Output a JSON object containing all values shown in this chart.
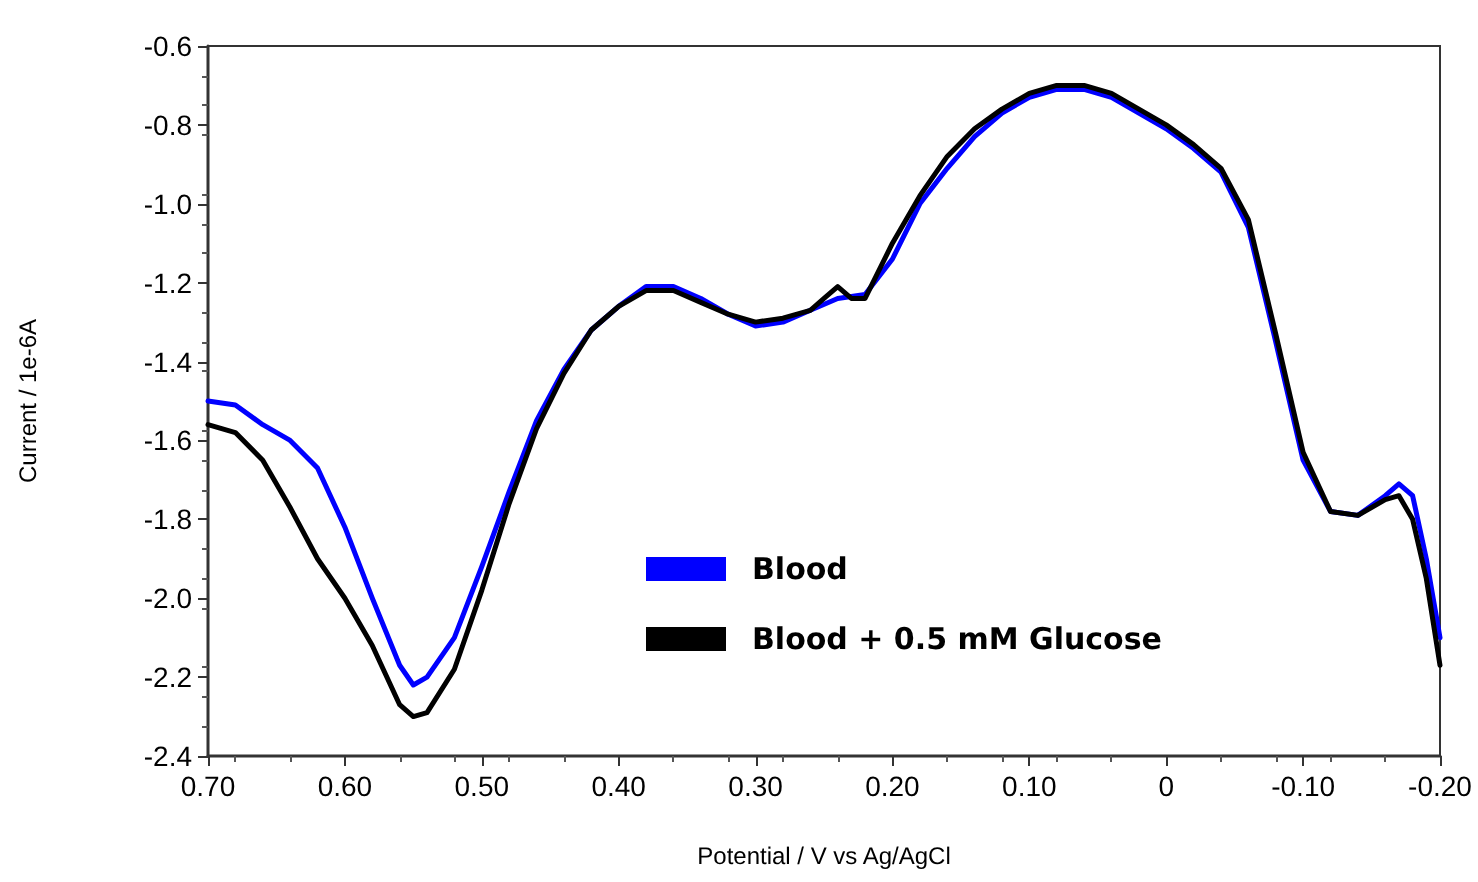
{
  "chart_data": {
    "type": "line",
    "xlabel": "Potential / V vs Ag/AgCl",
    "ylabel": "Current / 1e-6A",
    "xlim": [
      0.7,
      -0.2
    ],
    "xticks": [
      {
        "value": 0.7,
        "label": "0.70"
      },
      {
        "value": 0.6,
        "label": "0.60"
      },
      {
        "value": 0.5,
        "label": "0.50"
      },
      {
        "value": 0.4,
        "label": "0.40"
      },
      {
        "value": 0.3,
        "label": "0.30"
      },
      {
        "value": 0.2,
        "label": "0.20"
      },
      {
        "value": 0.1,
        "label": "0.10"
      },
      0,
      {
        "value": -0.1,
        "label": "-0.10"
      },
      {
        "value": -0.2,
        "label": "-0.20"
      }
    ],
    "ylim": [
      -2.4,
      -0.6
    ],
    "yticks": [
      -2.4,
      -2.2,
      {
        "value": -2,
        "label": "-2.0"
      },
      -1.8,
      -1.6,
      -1.4,
      -1.2,
      {
        "value": -1,
        "label": "-1.0"
      },
      -0.8,
      -0.6
    ],
    "grid": false,
    "legend": "bottom right",
    "marker": "none",
    "line_style": "solid",
    "series": [
      {
        "name": "Blood",
        "color": "#0000ff",
        "x": [
          0.7,
          0.68,
          0.66,
          0.64,
          0.62,
          0.6,
          0.58,
          0.56,
          0.55,
          0.54,
          0.52,
          0.5,
          0.48,
          0.46,
          0.44,
          0.42,
          0.4,
          0.38,
          0.36,
          0.34,
          0.32,
          0.3,
          0.28,
          0.26,
          0.24,
          0.22,
          0.2,
          0.18,
          0.16,
          0.14,
          0.12,
          0.1,
          0.08,
          0.06,
          0.04,
          0.02,
          0,
          -0.02,
          -0.04,
          -0.06,
          -0.08,
          -0.1,
          -0.12,
          -0.14,
          -0.16,
          -0.17,
          -0.18,
          -0.19,
          -0.2
        ],
        "values": [
          -1.5,
          -1.51,
          -1.56,
          -1.6,
          -1.67,
          -1.82,
          -2.0,
          -2.17,
          -2.22,
          -2.2,
          -2.1,
          -1.92,
          -1.73,
          -1.55,
          -1.42,
          -1.32,
          -1.26,
          -1.21,
          -1.21,
          -1.24,
          -1.28,
          -1.31,
          -1.3,
          -1.27,
          -1.24,
          -1.23,
          -1.14,
          -1.0,
          -0.91,
          -0.83,
          -0.77,
          -0.73,
          -0.71,
          -0.71,
          -0.73,
          -0.77,
          -0.81,
          -0.86,
          -0.92,
          -1.06,
          -1.35,
          -1.65,
          -1.78,
          -1.79,
          -1.74,
          -1.71,
          -1.74,
          -1.9,
          -2.1
        ]
      },
      {
        "name": "Blood + 0.5 mM Glucose",
        "color": "#000000",
        "x": [
          0.7,
          0.68,
          0.66,
          0.64,
          0.62,
          0.6,
          0.58,
          0.56,
          0.55,
          0.54,
          0.52,
          0.5,
          0.48,
          0.46,
          0.44,
          0.42,
          0.4,
          0.38,
          0.36,
          0.34,
          0.32,
          0.3,
          0.28,
          0.26,
          0.25,
          0.24,
          0.23,
          0.22,
          0.2,
          0.18,
          0.16,
          0.14,
          0.12,
          0.1,
          0.08,
          0.06,
          0.04,
          0.02,
          0,
          -0.02,
          -0.04,
          -0.06,
          -0.08,
          -0.1,
          -0.12,
          -0.14,
          -0.16,
          -0.17,
          -0.18,
          -0.19,
          -0.2
        ],
        "values": [
          -1.56,
          -1.58,
          -1.65,
          -1.77,
          -1.9,
          -2.0,
          -2.12,
          -2.27,
          -2.3,
          -2.29,
          -2.18,
          -1.98,
          -1.76,
          -1.57,
          -1.43,
          -1.32,
          -1.26,
          -1.22,
          -1.22,
          -1.25,
          -1.28,
          -1.3,
          -1.29,
          -1.27,
          -1.24,
          -1.21,
          -1.24,
          -1.24,
          -1.1,
          -0.98,
          -0.88,
          -0.81,
          -0.76,
          -0.72,
          -0.7,
          -0.7,
          -0.72,
          -0.76,
          -0.8,
          -0.85,
          -0.91,
          -1.04,
          -1.33,
          -1.63,
          -1.78,
          -1.79,
          -1.75,
          -1.74,
          -1.8,
          -1.95,
          -2.17
        ]
      }
    ]
  }
}
